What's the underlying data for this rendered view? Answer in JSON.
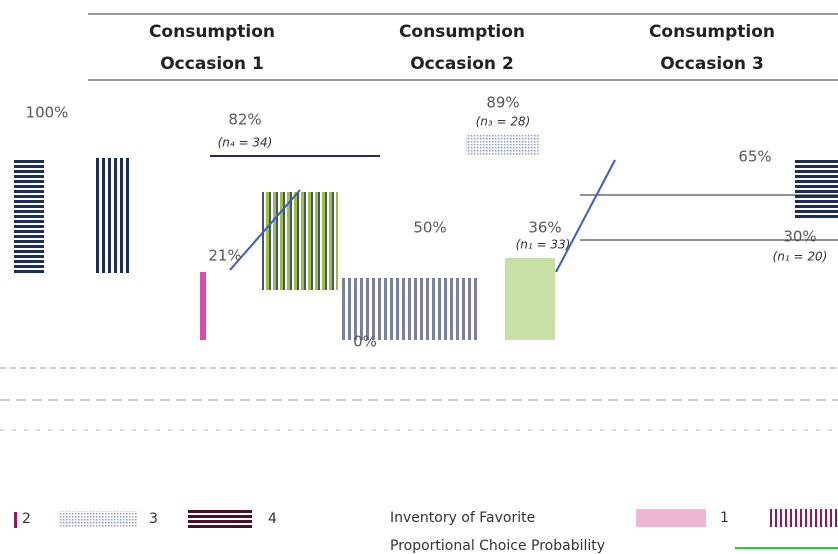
{
  "headers": [
    [
      "Consumption",
      "Occasion 1"
    ],
    [
      "Consumption",
      "Occasion 2"
    ],
    [
      "Consumption",
      "Occasion 3"
    ]
  ],
  "labels": [
    "100%",
    "82%",
    "(n₄ = 34)",
    "89%",
    "(n₃ = 28)",
    "65%",
    "21%",
    "50%",
    "36%",
    "(n₁ = 33)",
    "30%",
    "(n₁ = 20)",
    "0%"
  ],
  "legend": [
    "2",
    "3",
    "4",
    "Inventory of Favorite",
    "1",
    "Proportional Choice Probability"
  ]
}
